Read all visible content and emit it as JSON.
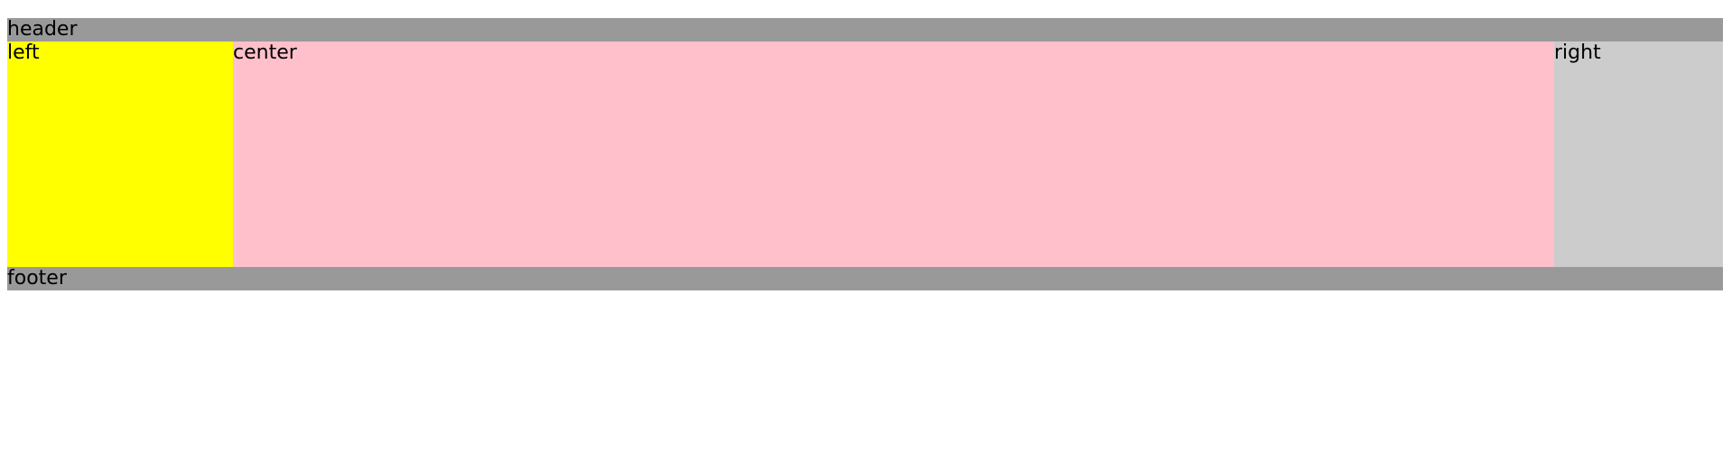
{
  "layout": {
    "header": {
      "label": "header",
      "color": "#999999"
    },
    "left": {
      "label": "left",
      "color": "#ffff00"
    },
    "center": {
      "label": "center",
      "color": "#ffc0cb"
    },
    "right": {
      "label": "right",
      "color": "#cccccc"
    },
    "footer": {
      "label": "footer",
      "color": "#999999"
    }
  }
}
